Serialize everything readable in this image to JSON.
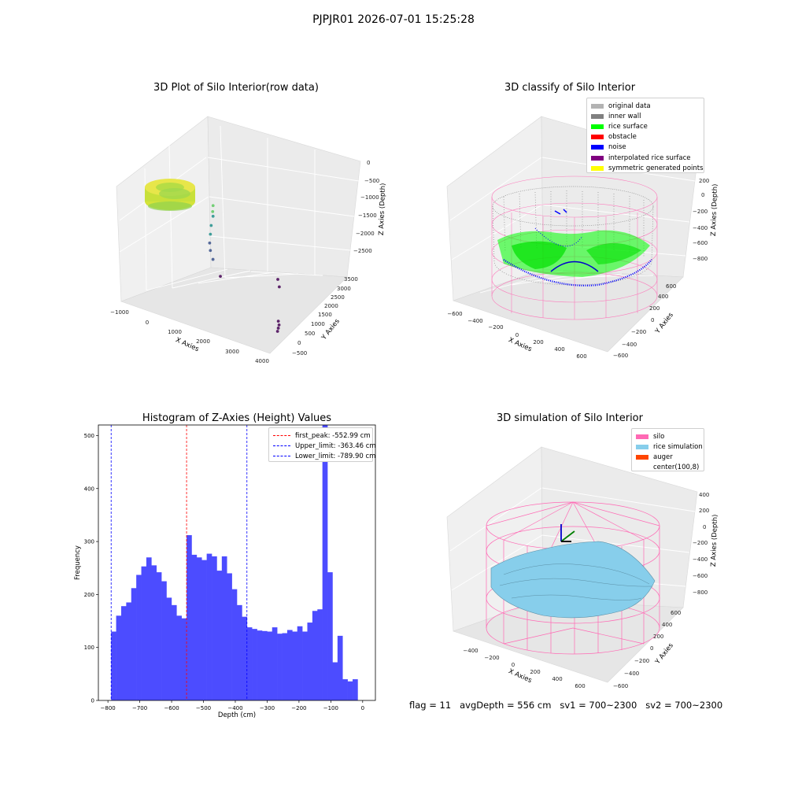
{
  "figure_title": "PJPJR01 2026-07-01 15:25:28",
  "footer": "flag = 11   avgDepth = 556 cm   sv1 = 700~2300   sv2 = 700~2300",
  "chart_data": [
    {
      "type": "scatter",
      "projection": "3d",
      "title": "3D Plot of Silo Interior(row data)",
      "xlabel": "X Axies",
      "ylabel": "Y Axies",
      "zlabel": "Z Axies (Depth)",
      "xticks": [
        "−1000",
        "0",
        "1000",
        "2000",
        "3000",
        "4000"
      ],
      "yticks": [
        "−500",
        "0",
        "500",
        "1000",
        "1500",
        "2000",
        "2500",
        "3000",
        "3500"
      ],
      "zticks": [
        "0",
        "−500",
        "−1000",
        "−1500",
        "−2000",
        "−2500"
      ],
      "xlim": [
        -1000,
        4000
      ],
      "ylim": [
        -500,
        3500
      ],
      "zlim": [
        -2900,
        200
      ],
      "colormap": "viridis",
      "points": [
        {
          "x": -400,
          "y": 2800,
          "z": -900
        },
        {
          "x": -300,
          "y": 2650,
          "z": -1000
        },
        {
          "x": -250,
          "y": 2600,
          "z": -1100
        },
        {
          "x": -200,
          "y": 2450,
          "z": -1300
        },
        {
          "x": -150,
          "y": 2350,
          "z": -1500
        },
        {
          "x": -100,
          "y": 2250,
          "z": -1700
        },
        {
          "x": 0,
          "y": 2150,
          "z": -1850
        },
        {
          "x": 200,
          "y": 2000,
          "z": -2000
        },
        {
          "x": 600,
          "y": 1800,
          "z": -2300
        },
        {
          "x": 1400,
          "y": 3300,
          "z": -2500
        },
        {
          "x": 1600,
          "y": 3100,
          "z": -2600
        },
        {
          "x": 3000,
          "y": 1200,
          "z": -2700
        },
        {
          "x": 3100,
          "y": 1100,
          "z": -2750
        },
        {
          "x": 3150,
          "y": 1000,
          "z": -2800
        },
        {
          "x": 3200,
          "y": 900,
          "z": -2850
        }
      ]
    },
    {
      "type": "scatter",
      "projection": "3d",
      "title": "3D classify of Silo Interior",
      "xlabel": "X Axies",
      "ylabel": "Y Axies",
      "zlabel": "Z Axies (Depth)",
      "xticks": [
        "−600",
        "−400",
        "−200",
        "0",
        "200",
        "400",
        "600"
      ],
      "yticks": [
        "−600",
        "−400",
        "−200",
        "0",
        "200",
        "400",
        "600"
      ],
      "zticks": [
        "200",
        "0",
        "−200",
        "−400",
        "−600",
        "−800"
      ],
      "legend": [
        {
          "label": "original data",
          "color": "#b3b3b3"
        },
        {
          "label": "inner wall",
          "color": "#808080"
        },
        {
          "label": "rice surface",
          "color": "#00ff00"
        },
        {
          "label": "obstacle",
          "color": "#ff0000"
        },
        {
          "label": "noise",
          "color": "#0000ff"
        },
        {
          "label": "interpolated rice surface",
          "color": "#800080"
        },
        {
          "label": "symmetric generated points",
          "color": "#ffff00"
        }
      ]
    },
    {
      "type": "bar",
      "title": "Histogram of Z-Axies (Height) Values",
      "xlabel": "Depth (cm)",
      "ylabel": "Frequency",
      "xlim": [
        -830,
        40
      ],
      "ylim": [
        0,
        520
      ],
      "xticks": [
        -800,
        -700,
        -600,
        -500,
        -400,
        -300,
        -200,
        -100,
        0
      ],
      "xtick_labels": [
        "−800",
        "−700",
        "−600",
        "−500",
        "−400",
        "−300",
        "−200",
        "−100",
        "0"
      ],
      "yticks": [
        0,
        100,
        200,
        300,
        400,
        500
      ],
      "bar_color": "#4c4cff",
      "bin_start": -790,
      "bin_width": 15.8,
      "values": [
        130,
        160,
        178,
        185,
        212,
        237,
        253,
        270,
        255,
        242,
        225,
        194,
        180,
        160,
        155,
        312,
        275,
        270,
        265,
        277,
        272,
        245,
        272,
        240,
        210,
        180,
        158,
        138,
        135,
        132,
        131,
        130,
        138,
        126,
        127,
        133,
        130,
        140,
        130,
        147,
        169,
        172,
        520,
        242,
        72,
        122,
        40,
        36,
        40
      ],
      "lines": [
        {
          "label": "first_peak: -552.99 cm",
          "x": -552.99,
          "color": "#ff0000"
        },
        {
          "label": "Upper_limit: -363.46 cm",
          "x": -363.46,
          "color": "#0000ff"
        },
        {
          "label": "Lower_limit: -789.90 cm",
          "x": -789.9,
          "color": "#0000ff"
        }
      ]
    },
    {
      "type": "surface",
      "projection": "3d",
      "title": "3D simulation of Silo Interior",
      "xlabel": "X Axies",
      "ylabel": "Y Axies",
      "zlabel": "Z Axies (Depth)",
      "xticks": [
        "−400",
        "−200",
        "0",
        "200",
        "400",
        "600"
      ],
      "yticks": [
        "−600",
        "−400",
        "−200",
        "0",
        "200",
        "400",
        "600"
      ],
      "zticks": [
        "400",
        "200",
        "0",
        "−200",
        "−400",
        "−600",
        "−800"
      ],
      "legend": [
        {
          "label": "silo",
          "color": "#ff69b4"
        },
        {
          "label": "rice simulation",
          "color": "#87ceeb"
        },
        {
          "label": "auger",
          "color": "#ff4500"
        },
        {
          "label": "center(100,8)",
          "color": ""
        }
      ]
    }
  ]
}
